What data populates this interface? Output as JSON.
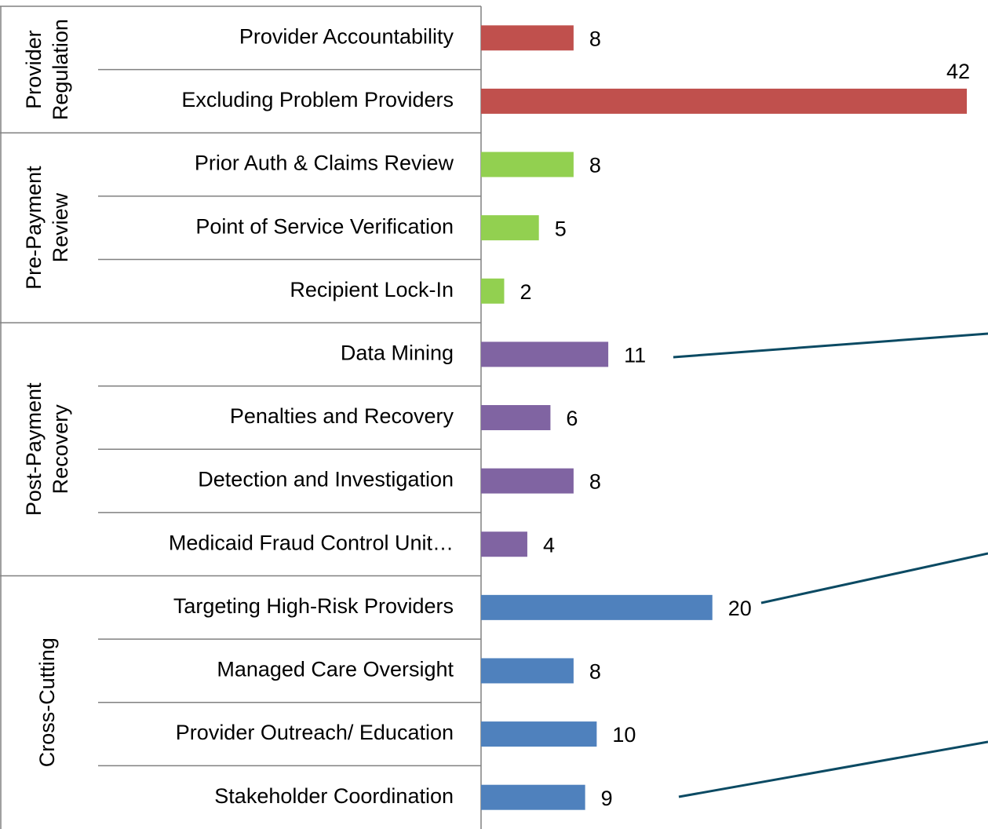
{
  "chart_data": {
    "type": "bar",
    "xlim": [
      0,
      42
    ],
    "groups": [
      {
        "name": "Provider Regulation",
        "color": "#c0504d",
        "categories": [
          "Provider Accountability",
          "Excluding Problem Providers"
        ],
        "values": [
          8,
          42
        ]
      },
      {
        "name": "Pre-Payment Review",
        "color": "#92d050",
        "categories": [
          "Prior Auth & Claims Review",
          "Point of Service Verification",
          "Recipient Lock-In"
        ],
        "values": [
          8,
          5,
          2
        ]
      },
      {
        "name": "Post-Payment Recovery",
        "color": "#8064a2",
        "categories": [
          "Data Mining",
          "Penalties and Recovery",
          "Detection and Investigation",
          "Medicaid Fraud Control Unit…"
        ],
        "values": [
          11,
          6,
          8,
          4
        ]
      },
      {
        "name": "Cross-Cutting",
        "color": "#4f81bd",
        "categories": [
          "Targeting High-Risk Providers",
          "Managed Care Oversight",
          "Provider Outreach/ Education",
          "Stakeholder Coordination"
        ],
        "values": [
          20,
          8,
          10,
          9
        ]
      }
    ]
  }
}
